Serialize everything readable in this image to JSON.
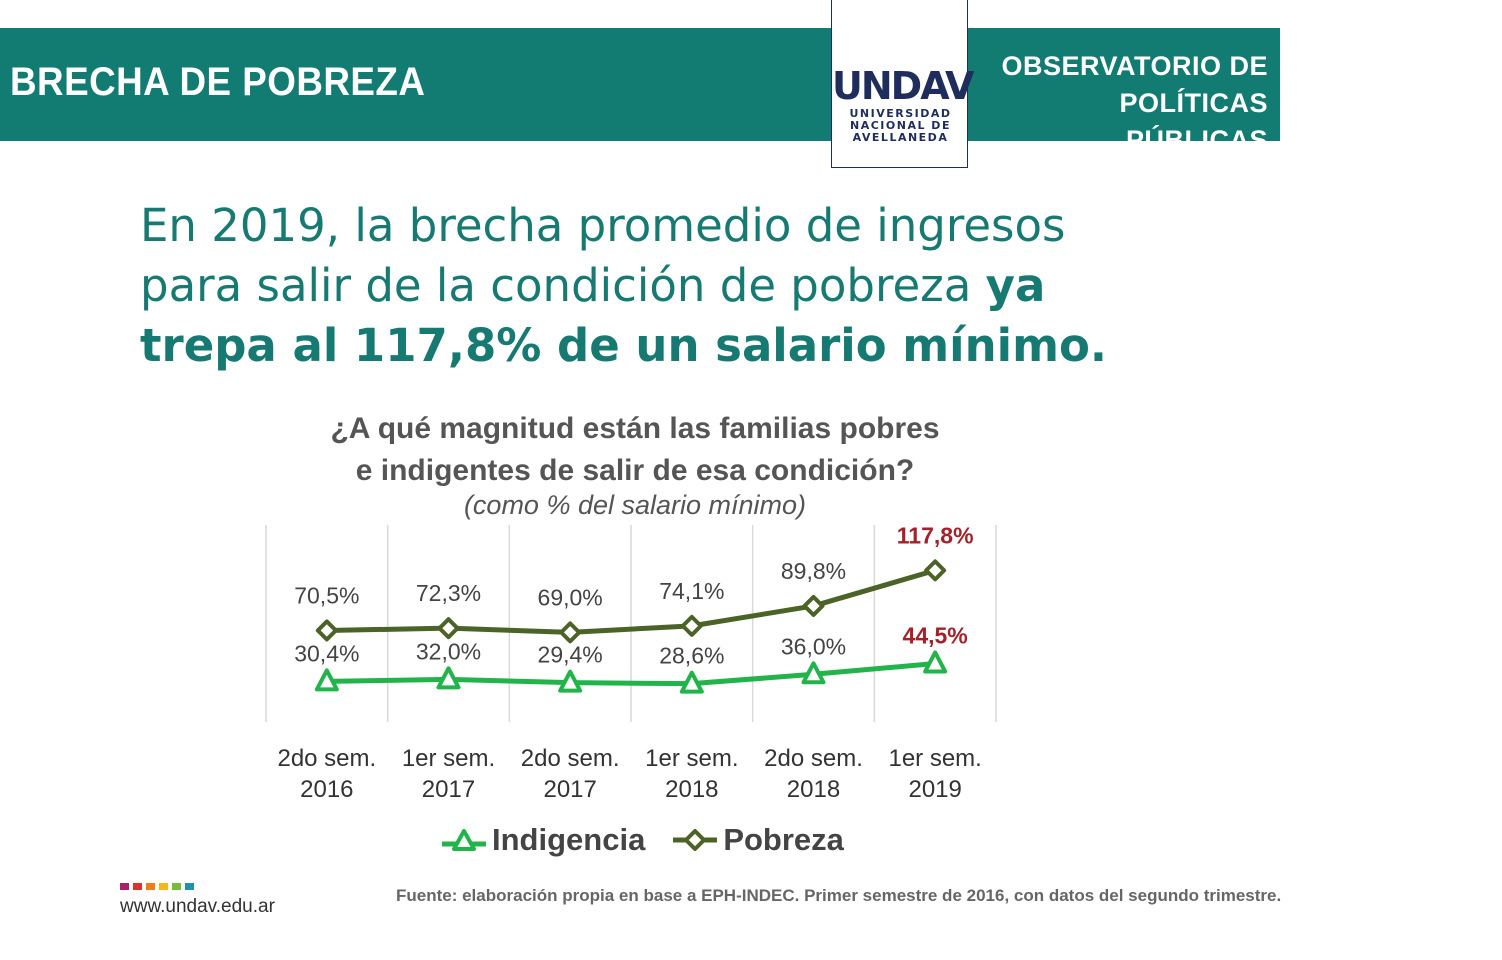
{
  "header": {
    "title": "BRECHA DE POBREZA",
    "org_line1": "OBSERVATORIO DE",
    "org_line2": "POLÍTICAS PÚBLICAS",
    "logo_mark": "UNDAV",
    "logo_line1": "UNIVERSIDAD",
    "logo_line2": "NACIONAL DE",
    "logo_line3": "AVELLANEDA"
  },
  "headline": {
    "normal": "En 2019, la brecha promedio de ingresos para salir de la condición de pobreza ",
    "bold": "ya trepa al 117,8% de un salario mínimo."
  },
  "chart_data": {
    "type": "line",
    "title_line1": "¿A qué magnitud están las familias pobres",
    "title_line2": "e indigentes de salir de esa condición?",
    "subtitle": "(como % del salario mínimo)",
    "categories": [
      [
        "2do sem.",
        "2016"
      ],
      [
        "1er sem.",
        "2017"
      ],
      [
        "2do sem.",
        "2017"
      ],
      [
        "1er sem.",
        "2018"
      ],
      [
        "2do sem.",
        "2018"
      ],
      [
        "1er sem.",
        "2019"
      ]
    ],
    "series": [
      {
        "name": "Indigencia",
        "values": [
          30.4,
          32.0,
          29.4,
          28.6,
          36.0,
          44.5
        ],
        "labels": [
          "30,4%",
          "32,0%",
          "29,4%",
          "28,6%",
          "36,0%",
          "44,5%"
        ],
        "color": "#22b44a",
        "marker": "triangle"
      },
      {
        "name": "Pobreza",
        "values": [
          70.5,
          72.3,
          69.0,
          74.1,
          89.8,
          117.8
        ],
        "labels": [
          "70,5%",
          "72,3%",
          "69,0%",
          "74,1%",
          "89,8%",
          "117,8%"
        ],
        "color": "#4b6326",
        "marker": "diamond"
      }
    ],
    "highlight_color": "#a3222a",
    "label_color": "#444444",
    "grid": "vertical",
    "legend": "bottom"
  },
  "footer": {
    "website": "www.undav.edu.ar",
    "source": "Fuente: elaboración propia en base a EPH-INDEC. Primer semestre de 2016, con datos del segundo trimestre.",
    "dot_colors": [
      "#a6226b",
      "#d8342b",
      "#ee7d1b",
      "#f4b81a",
      "#7cb93f",
      "#1f93a6"
    ]
  }
}
